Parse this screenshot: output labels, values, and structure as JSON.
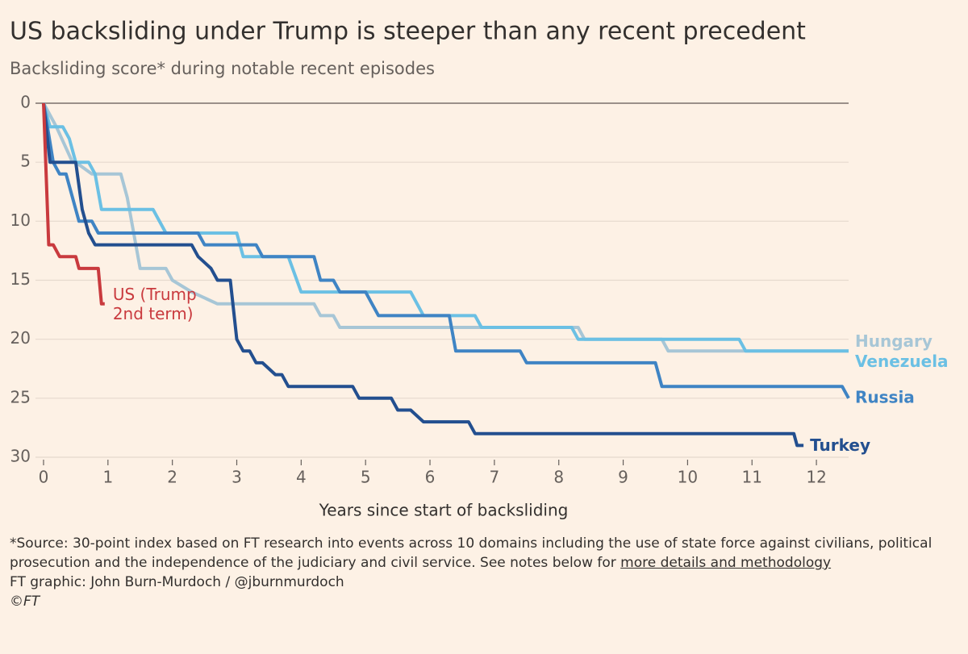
{
  "chart_data": {
    "type": "line",
    "title": "US backsliding under Trump is steeper than any recent precedent",
    "subtitle": "Backsliding score* during notable recent episodes",
    "x_label": "Years since start of backsliding",
    "xlim": [
      -0.125,
      12.5
    ],
    "xticks": [
      0,
      1,
      2,
      3,
      4,
      5,
      6,
      7,
      8,
      9,
      10,
      11,
      12
    ],
    "ylim": [
      0,
      30
    ],
    "y_reversed": true,
    "yticks": [
      0,
      5,
      10,
      15,
      20,
      25,
      30
    ],
    "grid": true,
    "series": [
      {
        "name": "Hungary",
        "color": "#a7c6d6",
        "x": [
          0,
          0.2,
          0.45,
          0.5,
          0.75,
          0.8,
          1.2,
          1.3,
          1.5,
          1.9,
          2.0,
          2.3,
          2.7,
          4.2,
          4.3,
          4.5,
          4.6,
          8.3,
          8.4,
          9.6,
          9.7,
          12.5
        ],
        "values": [
          0,
          2,
          5,
          5,
          6,
          6,
          6,
          8,
          14,
          14,
          15,
          16,
          17,
          17,
          18,
          18,
          19,
          19,
          20,
          20,
          21,
          21
        ]
      },
      {
        "name": "Venezuela",
        "color": "#6bc0e4",
        "x": [
          0,
          0.1,
          0.3,
          0.4,
          0.5,
          0.7,
          0.8,
          0.9,
          1.7,
          1.9,
          3.0,
          3.1,
          3.8,
          4.0,
          5.7,
          5.9,
          6.7,
          6.8,
          8.2,
          8.3,
          10.8,
          10.9,
          12.5
        ],
        "values": [
          0,
          2,
          2,
          3,
          5,
          5,
          6,
          9,
          9,
          11,
          11,
          13,
          13,
          16,
          16,
          18,
          18,
          19,
          19,
          20,
          20,
          21,
          21
        ]
      },
      {
        "name": "Russia",
        "color": "#3f84c4",
        "x": [
          0,
          0.15,
          0.25,
          0.35,
          0.55,
          0.75,
          0.85,
          2.4,
          2.5,
          3.3,
          3.4,
          4.2,
          4.3,
          4.5,
          4.6,
          5.0,
          5.1,
          5.2,
          6.3,
          6.4,
          7.4,
          7.5,
          9.5,
          9.6,
          12.4,
          12.5
        ],
        "values": [
          0,
          5,
          6,
          6,
          10,
          10,
          11,
          11,
          12,
          12,
          13,
          13,
          15,
          15,
          16,
          16,
          17,
          18,
          18,
          21,
          21,
          22,
          22,
          24,
          24,
          25
        ]
      },
      {
        "name": "Turkey",
        "color": "#234f8f",
        "x": [
          0,
          0.1,
          0.5,
          0.6,
          0.7,
          0.8,
          2.3,
          2.4,
          2.6,
          2.7,
          2.9,
          3.0,
          3.1,
          3.2,
          3.3,
          3.4,
          3.6,
          3.7,
          3.8,
          4.8,
          4.9,
          5.4,
          5.5,
          5.7,
          5.9,
          6.6,
          6.7,
          11.65,
          11.7,
          11.8
        ],
        "values": [
          0,
          5,
          5,
          9,
          11,
          12,
          12,
          13,
          14,
          15,
          15,
          20,
          21,
          21,
          22,
          22,
          23,
          23,
          24,
          24,
          25,
          25,
          26,
          26,
          27,
          27,
          28,
          28,
          29,
          29
        ]
      },
      {
        "name": "US (Trump 2nd term)",
        "color": "#c93a3e",
        "x": [
          0,
          0.08,
          0.15,
          0.25,
          0.5,
          0.55,
          0.85,
          0.9,
          0.95
        ],
        "values": [
          0,
          12,
          12,
          13,
          13,
          14,
          14,
          17,
          17
        ]
      }
    ],
    "note": "*Source: 30-point index based on FT research into events across 10 domains including the use of state force against civilians, political prosecution and the independence of the judiciary and civil service. See notes below for",
    "note_link": "more details and methodology",
    "credit": "FT graphic: John Burn-Murdoch / @jburnmurdoch",
    "copyright": "©FT"
  }
}
